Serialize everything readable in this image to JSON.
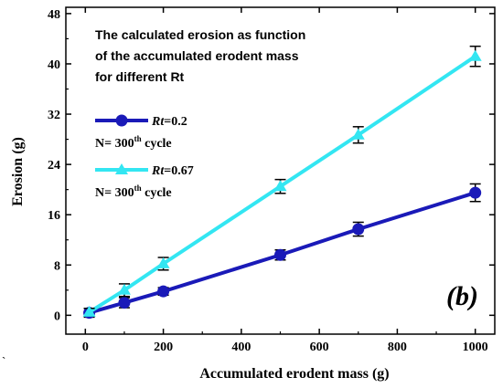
{
  "chart_data": {
    "type": "line",
    "title_lines": [
      "The calculated erosion as function",
      "of the accumulated erodent mass",
      "for different Rt"
    ],
    "xlabel": "Accumulated erodent mass (g)",
    "ylabel": "Erosion (g)",
    "xlim": [
      -50,
      1050
    ],
    "ylim": [
      -3,
      49
    ],
    "xticks": [
      0,
      200,
      400,
      600,
      800,
      1000
    ],
    "yticks": [
      0,
      8,
      16,
      24,
      32,
      40,
      48
    ],
    "grid": false,
    "legend_position": "upper-left",
    "panel_label": "(b)",
    "series": [
      {
        "name": "Rt=0.2",
        "note": "N= 300th cycle",
        "color": "#1a1ab8",
        "marker": "circle",
        "x": [
          10,
          100,
          200,
          500,
          700,
          1000
        ],
        "y": [
          0.4,
          2.0,
          3.8,
          9.6,
          13.7,
          19.5
        ],
        "err": [
          0.7,
          0.8,
          0.6,
          0.8,
          1.1,
          1.4
        ]
      },
      {
        "name": "Rt=0.67",
        "note": "N= 300th cycle",
        "color": "#33e6f2",
        "marker": "triangle",
        "x": [
          10,
          100,
          200,
          500,
          700,
          1000
        ],
        "y": [
          0.5,
          4.0,
          8.2,
          20.5,
          28.7,
          41.2
        ],
        "err": [
          0.6,
          1.0,
          1.0,
          1.1,
          1.3,
          1.6
        ]
      }
    ]
  },
  "legend": [
    {
      "prefix": "Rt",
      "suffix": "=0.2",
      "note_main": "N= 300",
      "note_sup": "th",
      "note_tail": " cycle"
    },
    {
      "prefix": "Rt",
      "suffix": "=0.67",
      "note_main": "N= 300",
      "note_sup": "th",
      "note_tail": " cycle"
    }
  ],
  "stray_mark": "`"
}
